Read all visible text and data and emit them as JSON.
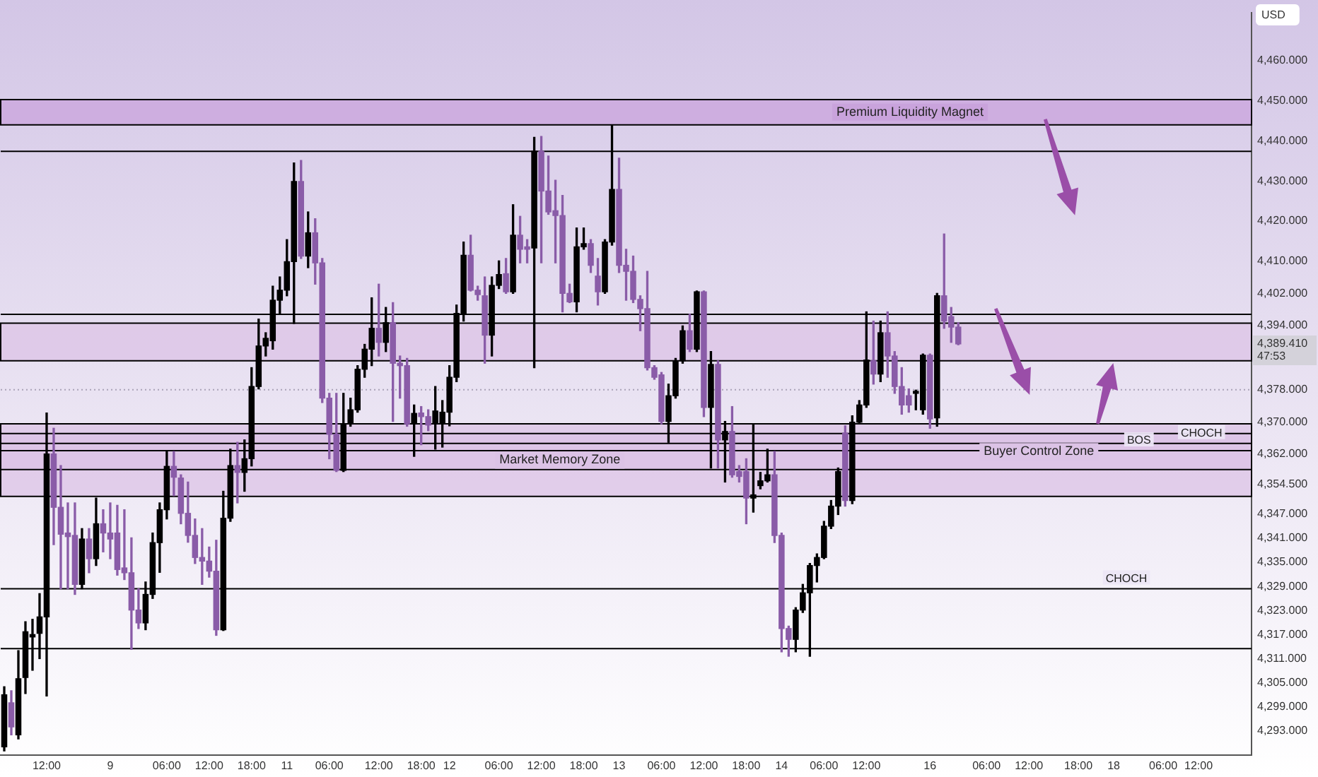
{
  "chart_data": {
    "type": "candlestick",
    "ylabel": "USD",
    "categories": [
      null,
      null,
      null,
      null,
      null,
      null,
      "12:00",
      null,
      null,
      null,
      null,
      null,
      null,
      null,
      null,
      "9",
      null,
      null,
      null,
      null,
      null,
      null,
      null,
      "06:00",
      null,
      null,
      null,
      null,
      null,
      "12:00",
      null,
      null,
      null,
      null,
      null,
      "18:00",
      null,
      null,
      null,
      null,
      "11",
      null,
      null,
      null,
      null,
      null,
      "06:00",
      null,
      null,
      null,
      null,
      null,
      null,
      "12:00",
      null,
      null,
      null,
      null,
      null,
      "18:00",
      null,
      null,
      null,
      "12",
      null,
      null,
      null,
      null,
      null,
      null,
      "06:00",
      null,
      null,
      null,
      null,
      null,
      "12:00",
      null,
      null,
      null,
      null,
      null,
      "18:00",
      null,
      null,
      null,
      null,
      "13",
      null,
      null,
      null,
      null,
      null,
      "06:00",
      null,
      null,
      null,
      null,
      null,
      "12:00",
      null,
      null,
      null,
      null,
      null,
      "18:00",
      null,
      null,
      null,
      null,
      "14",
      null,
      null,
      null,
      null,
      null,
      "06:00",
      null,
      null,
      null,
      null,
      null,
      "12:00",
      null,
      null,
      null,
      null,
      null,
      null,
      null,
      null,
      "16",
      null,
      null,
      null,
      null,
      null,
      null,
      null,
      "06:00",
      null,
      null,
      null,
      null,
      null,
      "12:00",
      null,
      null,
      null,
      null,
      null,
      null,
      "18:00",
      null,
      null,
      null,
      null,
      "18",
      null,
      null,
      null,
      null,
      null,
      null,
      "06:00",
      null,
      null,
      null,
      null,
      "12:00",
      null,
      null,
      null,
      null,
      null,
      null,
      null
    ],
    "ohlc": [
      [
        4289,
        4304,
        4288,
        4302
      ],
      [
        4300,
        4303,
        4292,
        4294
      ],
      [
        4292,
        4313,
        4291,
        4306
      ],
      [
        4306.3,
        4320.2,
        4302.3,
        4317.7
      ],
      [
        4316.4,
        4320.8,
        4308.1,
        4317.0
      ],
      [
        4317.3,
        4327.2,
        4311.0,
        4321.4
      ],
      [
        4321.4,
        4372.2,
        4301.7,
        4362.0
      ],
      [
        4362.0,
        4368.4,
        4339.4,
        4348.7
      ],
      [
        4348.7,
        4359.1,
        4328.4,
        4342.0
      ],
      [
        4342.3,
        4349.8,
        4328.4,
        4341.4
      ],
      [
        4341.7,
        4349.8,
        4327.0,
        4329.5
      ],
      [
        4329.5,
        4343.4,
        4328.4,
        4340.8
      ],
      [
        4340.8,
        4343.4,
        4332.4,
        4335.9
      ],
      [
        4335.9,
        4351.0,
        4334.2,
        4344.6
      ],
      [
        4344.6,
        4348.1,
        4337.6,
        4342.3
      ],
      [
        4342.3,
        4349.8,
        4335.9,
        4340.8
      ],
      [
        4342.3,
        4349.2,
        4331.8,
        4333.2
      ],
      [
        4333.6,
        4348.1,
        4330.7,
        4332.4
      ],
      [
        4332.4,
        4341.1,
        4313.3,
        4323.1
      ],
      [
        4323.1,
        4328.4,
        4318.5,
        4319.9
      ],
      [
        4319.9,
        4330.1,
        4318.2,
        4327.0
      ],
      [
        4327.0,
        4342.3,
        4326.0,
        4339.9
      ],
      [
        4339.9,
        4349.8,
        4332.5,
        4348.1
      ],
      [
        4348.1,
        4362.6,
        4345.8,
        4358.9
      ],
      [
        4358.9,
        4362.6,
        4351.6,
        4356.2
      ],
      [
        4356.0,
        4356.8,
        4344.6,
        4347.2
      ],
      [
        4347.2,
        4355.0,
        4340.0,
        4341.7
      ],
      [
        4341.7,
        4345.8,
        4334.7,
        4336.2
      ],
      [
        4336.2,
        4343.4,
        4329.5,
        4335.3
      ],
      [
        4335.3,
        4338.8,
        4331.3,
        4332.8
      ],
      [
        4332.8,
        4340.5,
        4316.8,
        4318.2
      ],
      [
        4318.2,
        4352.7,
        4318.0,
        4346.0
      ],
      [
        4346.0,
        4363.2,
        4345.2,
        4359.1
      ],
      [
        4359.1,
        4364.9,
        4349.8,
        4357.4
      ],
      [
        4357.4,
        4365.5,
        4352.7,
        4360.8
      ],
      [
        4360.8,
        4383.5,
        4359.0,
        4378.8
      ],
      [
        4378.8,
        4395.6,
        4378.2,
        4388.9
      ],
      [
        4388.9,
        4392.2,
        4386.4,
        4390.8
      ],
      [
        4390.2,
        4403.8,
        4388.1,
        4400.3
      ],
      [
        4400.3,
        4406.1,
        4396.8,
        4402.8
      ],
      [
        4402.8,
        4415.4,
        4401.4,
        4409.9
      ],
      [
        4409.9,
        4434.5,
        4394.5,
        4429.9
      ],
      [
        4429.9,
        4435.1,
        4410.7,
        4411.3
      ],
      [
        4411.3,
        4422.3,
        4408.4,
        4417.1
      ],
      [
        4417.1,
        4420.6,
        4404.3,
        4409.6
      ],
      [
        4409.6,
        4410.7,
        4374.8,
        4375.9
      ],
      [
        4375.9,
        4377.1,
        4360.8,
        4366.9
      ],
      [
        4366.9,
        4377.1,
        4357.6,
        4357.9
      ],
      [
        4357.9,
        4377.1,
        4357.6,
        4369.5
      ],
      [
        4369.5,
        4375.9,
        4368.9,
        4373.0
      ],
      [
        4373.0,
        4384.0,
        4372.4,
        4383.1
      ],
      [
        4383.1,
        4389.3,
        4381.1,
        4388.1
      ],
      [
        4388.1,
        4400.9,
        4384.0,
        4393.3
      ],
      [
        4393.3,
        4404.3,
        4386.4,
        4389.8
      ],
      [
        4389.8,
        4398.5,
        4387.5,
        4394.7
      ],
      [
        4394.7,
        4399.7,
        4370.1,
        4384.6
      ],
      [
        4384.6,
        4386.4,
        4375.9,
        4384.0
      ],
      [
        4384.0,
        4385.8,
        4368.9,
        4369.5
      ],
      [
        4369.5,
        4374.2,
        4361.4,
        4372.1
      ],
      [
        4372.2,
        4373.8,
        4364.3,
        4371.3
      ],
      [
        4371.3,
        4373.0,
        4367.8,
        4369.2
      ],
      [
        4369.5,
        4378.8,
        4363.2,
        4372.7
      ],
      [
        4369.5,
        4375.3,
        4363.7,
        4372.4
      ],
      [
        4372.4,
        4384.0,
        4369.0,
        4381.1
      ],
      [
        4381.1,
        4399.1,
        4380.0,
        4397.0
      ],
      [
        4397.0,
        4414.8,
        4395.1,
        4411.5
      ],
      [
        4411.5,
        4416.5,
        4402.6,
        4402.8
      ],
      [
        4402.8,
        4403.8,
        4400.3,
        4401.7
      ],
      [
        4401.4,
        4406.1,
        4384.6,
        4391.6
      ],
      [
        4391.6,
        4406.1,
        4386.4,
        4404.0
      ],
      [
        4404.0,
        4410.1,
        4403.2,
        4406.7
      ],
      [
        4406.9,
        4410.7,
        4402.0,
        4402.4
      ],
      [
        4402.4,
        4424.1,
        4402.0,
        4416.5
      ],
      [
        4416.5,
        4421.2,
        4409.6,
        4413.0
      ],
      [
        4413.6,
        4415.4,
        4409.6,
        4413.0
      ],
      [
        4413.3,
        4440.9,
        4383.5,
        4437.4
      ],
      [
        4437.4,
        4441.1,
        4409.6,
        4427.5
      ],
      [
        4427.5,
        4436.2,
        4421.7,
        4422.3
      ],
      [
        4422.6,
        4430.2,
        4409.6,
        4421.4
      ],
      [
        4421.4,
        4426.4,
        4397.4,
        4402.0
      ],
      [
        4402.0,
        4404.3,
        4399.7,
        4399.9
      ],
      [
        4399.9,
        4418.3,
        4397.4,
        4413.6
      ],
      [
        4413.6,
        4418.3,
        4413.0,
        4414.4
      ],
      [
        4414.4,
        4415.4,
        4407.2,
        4409.0
      ],
      [
        4406.3,
        4410.7,
        4399.1,
        4402.4
      ],
      [
        4402.4,
        4415.4,
        4402.0,
        4414.8
      ],
      [
        4414.8,
        4444.0,
        4414.0,
        4427.9
      ],
      [
        4427.9,
        4435.7,
        4407.2,
        4409.0
      ],
      [
        4409.0,
        4413.0,
        4400.3,
        4407.5
      ],
      [
        4407.5,
        4411.3,
        4399.7,
        4400.5
      ],
      [
        4400.5,
        4401.4,
        4392.7,
        4398.2
      ],
      [
        4398.2,
        4407.5,
        4382.9,
        4383.5
      ],
      [
        4383.5,
        4384.0,
        4380.6,
        4381.1
      ],
      [
        4381.7,
        4382.3,
        4369.5,
        4370.1
      ],
      [
        4370.1,
        4379.4,
        4364.9,
        4376.5
      ],
      [
        4376.5,
        4385.8,
        4375.9,
        4385.2
      ],
      [
        4385.2,
        4393.9,
        4384.6,
        4392.7
      ],
      [
        4392.7,
        4396.8,
        4387.5,
        4388.1
      ],
      [
        4388.1,
        4402.6,
        4387.5,
        4402.4
      ],
      [
        4402.4,
        4402.6,
        4371.3,
        4373.6
      ],
      [
        4373.6,
        4387.5,
        4358.5,
        4384.3
      ],
      [
        4384.3,
        4385.2,
        4358.5,
        4365.5
      ],
      [
        4365.5,
        4370.1,
        4355.0,
        4367.6
      ],
      [
        4367.6,
        4373.8,
        4356.2,
        4356.8
      ],
      [
        4357.6,
        4359.1,
        4355.0,
        4356.4
      ],
      [
        4357.6,
        4360.8,
        4344.6,
        4351.0
      ],
      [
        4351.0,
        4369.5,
        4347.5,
        4351.8
      ],
      [
        4354.1,
        4357.4,
        4353.3,
        4355.3
      ],
      [
        4355.3,
        4363.2,
        4355.0,
        4356.8
      ],
      [
        4356.8,
        4362.6,
        4339.9,
        4341.7
      ],
      [
        4341.7,
        4342.3,
        4312.7,
        4318.5
      ],
      [
        4318.5,
        4319.1,
        4311.6,
        4315.8
      ],
      [
        4315.8,
        4323.7,
        4312.7,
        4323.1
      ],
      [
        4323.1,
        4329.5,
        4322.5,
        4327.4
      ],
      [
        4327.4,
        4334.7,
        4311.6,
        4334.2
      ],
      [
        4334.2,
        4337.1,
        4330.1,
        4336.2
      ],
      [
        4336.2,
        4345.2,
        4335.9,
        4344.0
      ],
      [
        4344.0,
        4350.4,
        4343.4,
        4349.0
      ],
      [
        4349.0,
        4358.5,
        4346.9,
        4357.6
      ],
      [
        4367.2,
        4369.0,
        4349.0,
        4350.4
      ],
      [
        4350.4,
        4371.5,
        4349.6,
        4369.9
      ],
      [
        4369.9,
        4375.3,
        4369.5,
        4374.2
      ],
      [
        4374.2,
        4397.4,
        4373.6,
        4385.4
      ],
      [
        4385.2,
        4395.1,
        4379.4,
        4381.9
      ],
      [
        4381.9,
        4395.1,
        4380.0,
        4392.2
      ],
      [
        4392.2,
        4397.4,
        4381.1,
        4386.4
      ],
      [
        4386.4,
        4387.5,
        4377.1,
        4378.8
      ],
      [
        4378.8,
        4383.5,
        4371.9,
        4374.2
      ],
      [
        4376.5,
        4378.2,
        4372.4,
        4374.2
      ],
      [
        4377.1,
        4377.9,
        4373.0,
        4377.6
      ],
      [
        4373.0,
        4386.9,
        4371.9,
        4386.6
      ],
      [
        4386.6,
        4386.9,
        4368.4,
        4370.7
      ],
      [
        4371.0,
        4402.0,
        4368.9,
        4401.4
      ],
      [
        4401.4,
        4416.8,
        4393.3,
        4395.1
      ],
      [
        4396.2,
        4398.5,
        4389.8,
        4393.6
      ],
      [
        4393.6,
        4394.7,
        4389.2,
        4389.41
      ],
      null,
      null,
      null,
      null,
      null,
      null,
      null,
      null,
      null,
      null,
      null,
      null,
      null,
      null,
      null,
      null,
      null,
      null,
      null,
      null,
      null,
      null,
      null,
      null,
      null,
      null,
      null,
      null,
      null,
      null,
      null,
      null,
      null,
      null,
      null,
      null,
      null,
      null,
      null,
      null,
      null
    ],
    "colors": [
      "#000000",
      "#8a5ca8",
      "#000000",
      "#000000",
      "#000000",
      "#000000",
      "#000000",
      "#8a5ca8",
      "#8a5ca8",
      "#8a5ca8",
      "#8a5ca8",
      "#000000",
      "#8a5ca8",
      "#000000",
      "#8a5ca8",
      "#8a5ca8",
      "#8a5ca8",
      "#8a5ca8",
      "#8a5ca8",
      "#8a5ca8",
      "#000000",
      "#000000",
      "#000000",
      "#000000",
      "#8a5ca8",
      "#8a5ca8",
      "#8a5ca8",
      "#8a5ca8",
      "#8a5ca8",
      "#8a5ca8",
      "#8a5ca8",
      "#000000",
      "#000000",
      "#8a5ca8",
      "#000000",
      "#000000",
      "#000000",
      "#000000",
      "#000000",
      "#000000",
      "#000000",
      "#000000",
      "#8a5ca8",
      "#000000",
      "#8a5ca8",
      "#8a5ca8",
      "#8a5ca8",
      "#8a5ca8",
      "#000000",
      "#000000",
      "#000000",
      "#000000",
      "#000000",
      "#8a5ca8",
      "#000000",
      "#8a5ca8",
      "#8a5ca8",
      "#8a5ca8",
      "#000000",
      "#8a5ca8",
      "#8a5ca8",
      "#000000",
      "#000000",
      "#000000",
      "#000000",
      "#000000",
      "#8a5ca8",
      "#8a5ca8",
      "#8a5ca8",
      "#000000",
      "#000000",
      "#8a5ca8",
      "#000000",
      "#8a5ca8",
      "#8a5ca8",
      "#000000",
      "#8a5ca8",
      "#8a5ca8",
      "#8a5ca8",
      "#8a5ca8",
      "#8a5ca8",
      "#000000",
      "#000000",
      "#8a5ca8",
      "#8a5ca8",
      "#000000",
      "#000000",
      "#8a5ca8",
      "#8a5ca8",
      "#8a5ca8",
      "#8a5ca8",
      "#8a5ca8",
      "#8a5ca8",
      "#8a5ca8",
      "#000000",
      "#000000",
      "#000000",
      "#8a5ca8",
      "#000000",
      "#8a5ca8",
      "#000000",
      "#8a5ca8",
      "#000000",
      "#8a5ca8",
      "#8a5ca8",
      "#8a5ca8",
      "#000000",
      "#000000",
      "#000000",
      "#8a5ca8",
      "#8a5ca8",
      "#8a5ca8",
      "#000000",
      "#000000",
      "#000000",
      "#000000",
      "#000000",
      "#000000",
      "#000000",
      "#8a5ca8",
      "#000000",
      "#000000",
      "#000000",
      "#8a5ca8",
      "#000000",
      "#8a5ca8",
      "#8a5ca8",
      "#8a5ca8",
      "#8a5ca8",
      "#000000",
      "#000000",
      "#8a5ca8",
      "#000000",
      "#8a5ca8",
      "#8a5ca8",
      "#8a5ca8",
      null,
      null,
      null,
      null,
      null,
      null,
      null,
      null,
      null,
      null,
      null,
      null,
      null,
      null,
      null,
      null,
      null,
      null,
      null,
      null,
      null,
      null,
      null,
      null,
      null,
      null,
      null,
      null,
      null,
      null,
      null,
      null,
      null,
      null,
      null,
      null,
      null,
      null,
      null,
      null,
      null
    ],
    "ylim": [
      4287,
      4472
    ],
    "yticks": [
      {
        "value": 4293,
        "label": "4,293.000"
      },
      {
        "value": 4299,
        "label": "4,299.000"
      },
      {
        "value": 4305,
        "label": "4,305.000"
      },
      {
        "value": 4311,
        "label": "4,311.000"
      },
      {
        "value": 4317,
        "label": "4,317.000"
      },
      {
        "value": 4323,
        "label": "4,323.000"
      },
      {
        "value": 4329,
        "label": "4,329.000"
      },
      {
        "value": 4335,
        "label": "4,335.000"
      },
      {
        "value": 4341,
        "label": "4,341.000"
      },
      {
        "value": 4347,
        "label": "4,347.000"
      },
      {
        "value": 4354.5,
        "label": "4,354.500"
      },
      {
        "value": 4362,
        "label": "4,362.000"
      },
      {
        "value": 4370,
        "label": "4,370.000"
      },
      {
        "value": 4378,
        "label": "4,378.000"
      },
      {
        "value": 4394,
        "label": "4,394.000"
      },
      {
        "value": 4402,
        "label": "4,402.000"
      },
      {
        "value": 4410,
        "label": "4,410.000"
      },
      {
        "value": 4420,
        "label": "4,420.000"
      },
      {
        "value": 4430,
        "label": "4,430.000"
      },
      {
        "value": 4440,
        "label": "4,440.000"
      },
      {
        "value": 4450,
        "label": "4,450.000"
      },
      {
        "value": 4460,
        "label": "4,460.000"
      }
    ],
    "grid": false,
    "bands": [
      {
        "axis": "y",
        "from": 4444.0,
        "to": 4450.3,
        "label": "Premium Liquidity Magnet",
        "color": "#c9a3dc"
      },
      {
        "axis": "y",
        "from": 4351.4,
        "to": 4369.5,
        "label": "Market Memory Zone",
        "color": "#dcc3e6"
      },
      {
        "axis": "y",
        "from": 4358.1,
        "to": 4367.1,
        "label": "Buyer Control Zone",
        "color": "#dcc3e6"
      },
      {
        "axis": "y",
        "from": 4385.2,
        "to": 4394.6,
        "color": "#dcc3e6"
      }
    ],
    "ref_lines": [
      {
        "axis": "y",
        "value": 4378,
        "color": "#aaa3b8",
        "line_style": "dotted"
      },
      {
        "axis": "y",
        "value": 4362.8,
        "label": "BOS",
        "color": "#000000"
      },
      {
        "axis": "y",
        "value": 4328.4,
        "label": "CHOCH",
        "color": "#000000"
      },
      {
        "axis": "y",
        "value": 4313.5,
        "color": "#000000"
      },
      {
        "axis": "y",
        "value": 4437.4,
        "color": "#000000"
      },
      {
        "axis": "y",
        "value": 4364.6,
        "label": "CHOCH",
        "color": "#000000"
      },
      {
        "axis": "y",
        "value": 4396.8,
        "color": "#000000"
      }
    ],
    "annotations": [
      "4,389.410",
      "47:53"
    ]
  }
}
